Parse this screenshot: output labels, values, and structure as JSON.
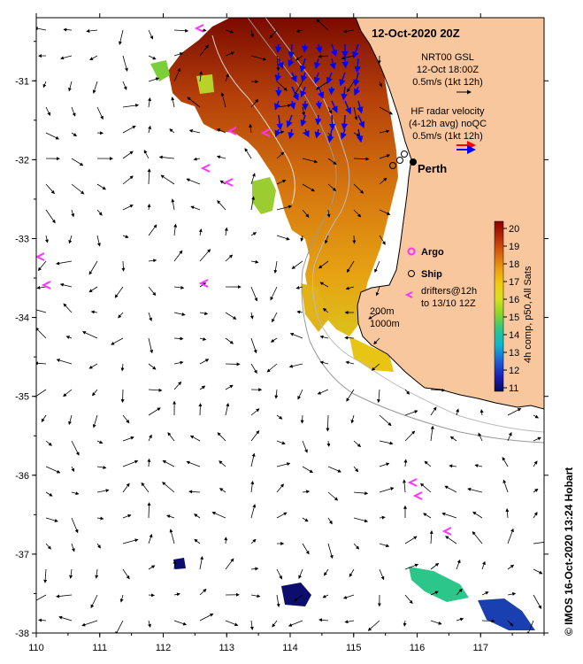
{
  "title": "12-Oct-2020 20Z",
  "map": {
    "lon_range": [
      110,
      118
    ],
    "lat_range": [
      -38,
      -30.2
    ],
    "x_ticks": [
      "110",
      "111",
      "112",
      "113",
      "114",
      "115",
      "116",
      "117"
    ],
    "y_ticks": [
      "-31",
      "-32",
      "-33",
      "-34",
      "-35",
      "-36",
      "-37",
      "-38"
    ],
    "land_color": "#f9c79e",
    "city": "Perth",
    "bathymetry_labels": [
      "200m",
      "1000m"
    ]
  },
  "legend": {
    "gsl_lines": [
      "NRT00 GSL",
      "12-Oct 18:00Z",
      "0.5m/s (1kt 12h)"
    ],
    "radar_lines": [
      "HF radar velocity",
      "(4-12h avg) noQC",
      "0.5m/s (1kt 12h)"
    ],
    "argo_label": "Argo",
    "ship_label": "Ship",
    "drifter_lines": [
      "drifters@12h",
      "to 13/10 12Z"
    ],
    "colors": {
      "argo": "#ff33ff",
      "radar_red": "#ff0000",
      "radar_blue": "#0000ff"
    }
  },
  "colorbar": {
    "ticks": [
      "20",
      "19",
      "18",
      "17",
      "16",
      "15",
      "14",
      "13",
      "12",
      "11"
    ],
    "label": "4h comp, p50, All Sats",
    "stops": [
      "#8b0000",
      "#b5290a",
      "#d5600f",
      "#e89a12",
      "#f2c812",
      "#d8e020",
      "#8ad52e",
      "#2cc58a",
      "#10b5d0",
      "#1b63d5",
      "#1a20b8",
      "#0a0a60"
    ]
  },
  "credit": "© IMOS 16-Oct-2020 13:24 Hobart"
}
